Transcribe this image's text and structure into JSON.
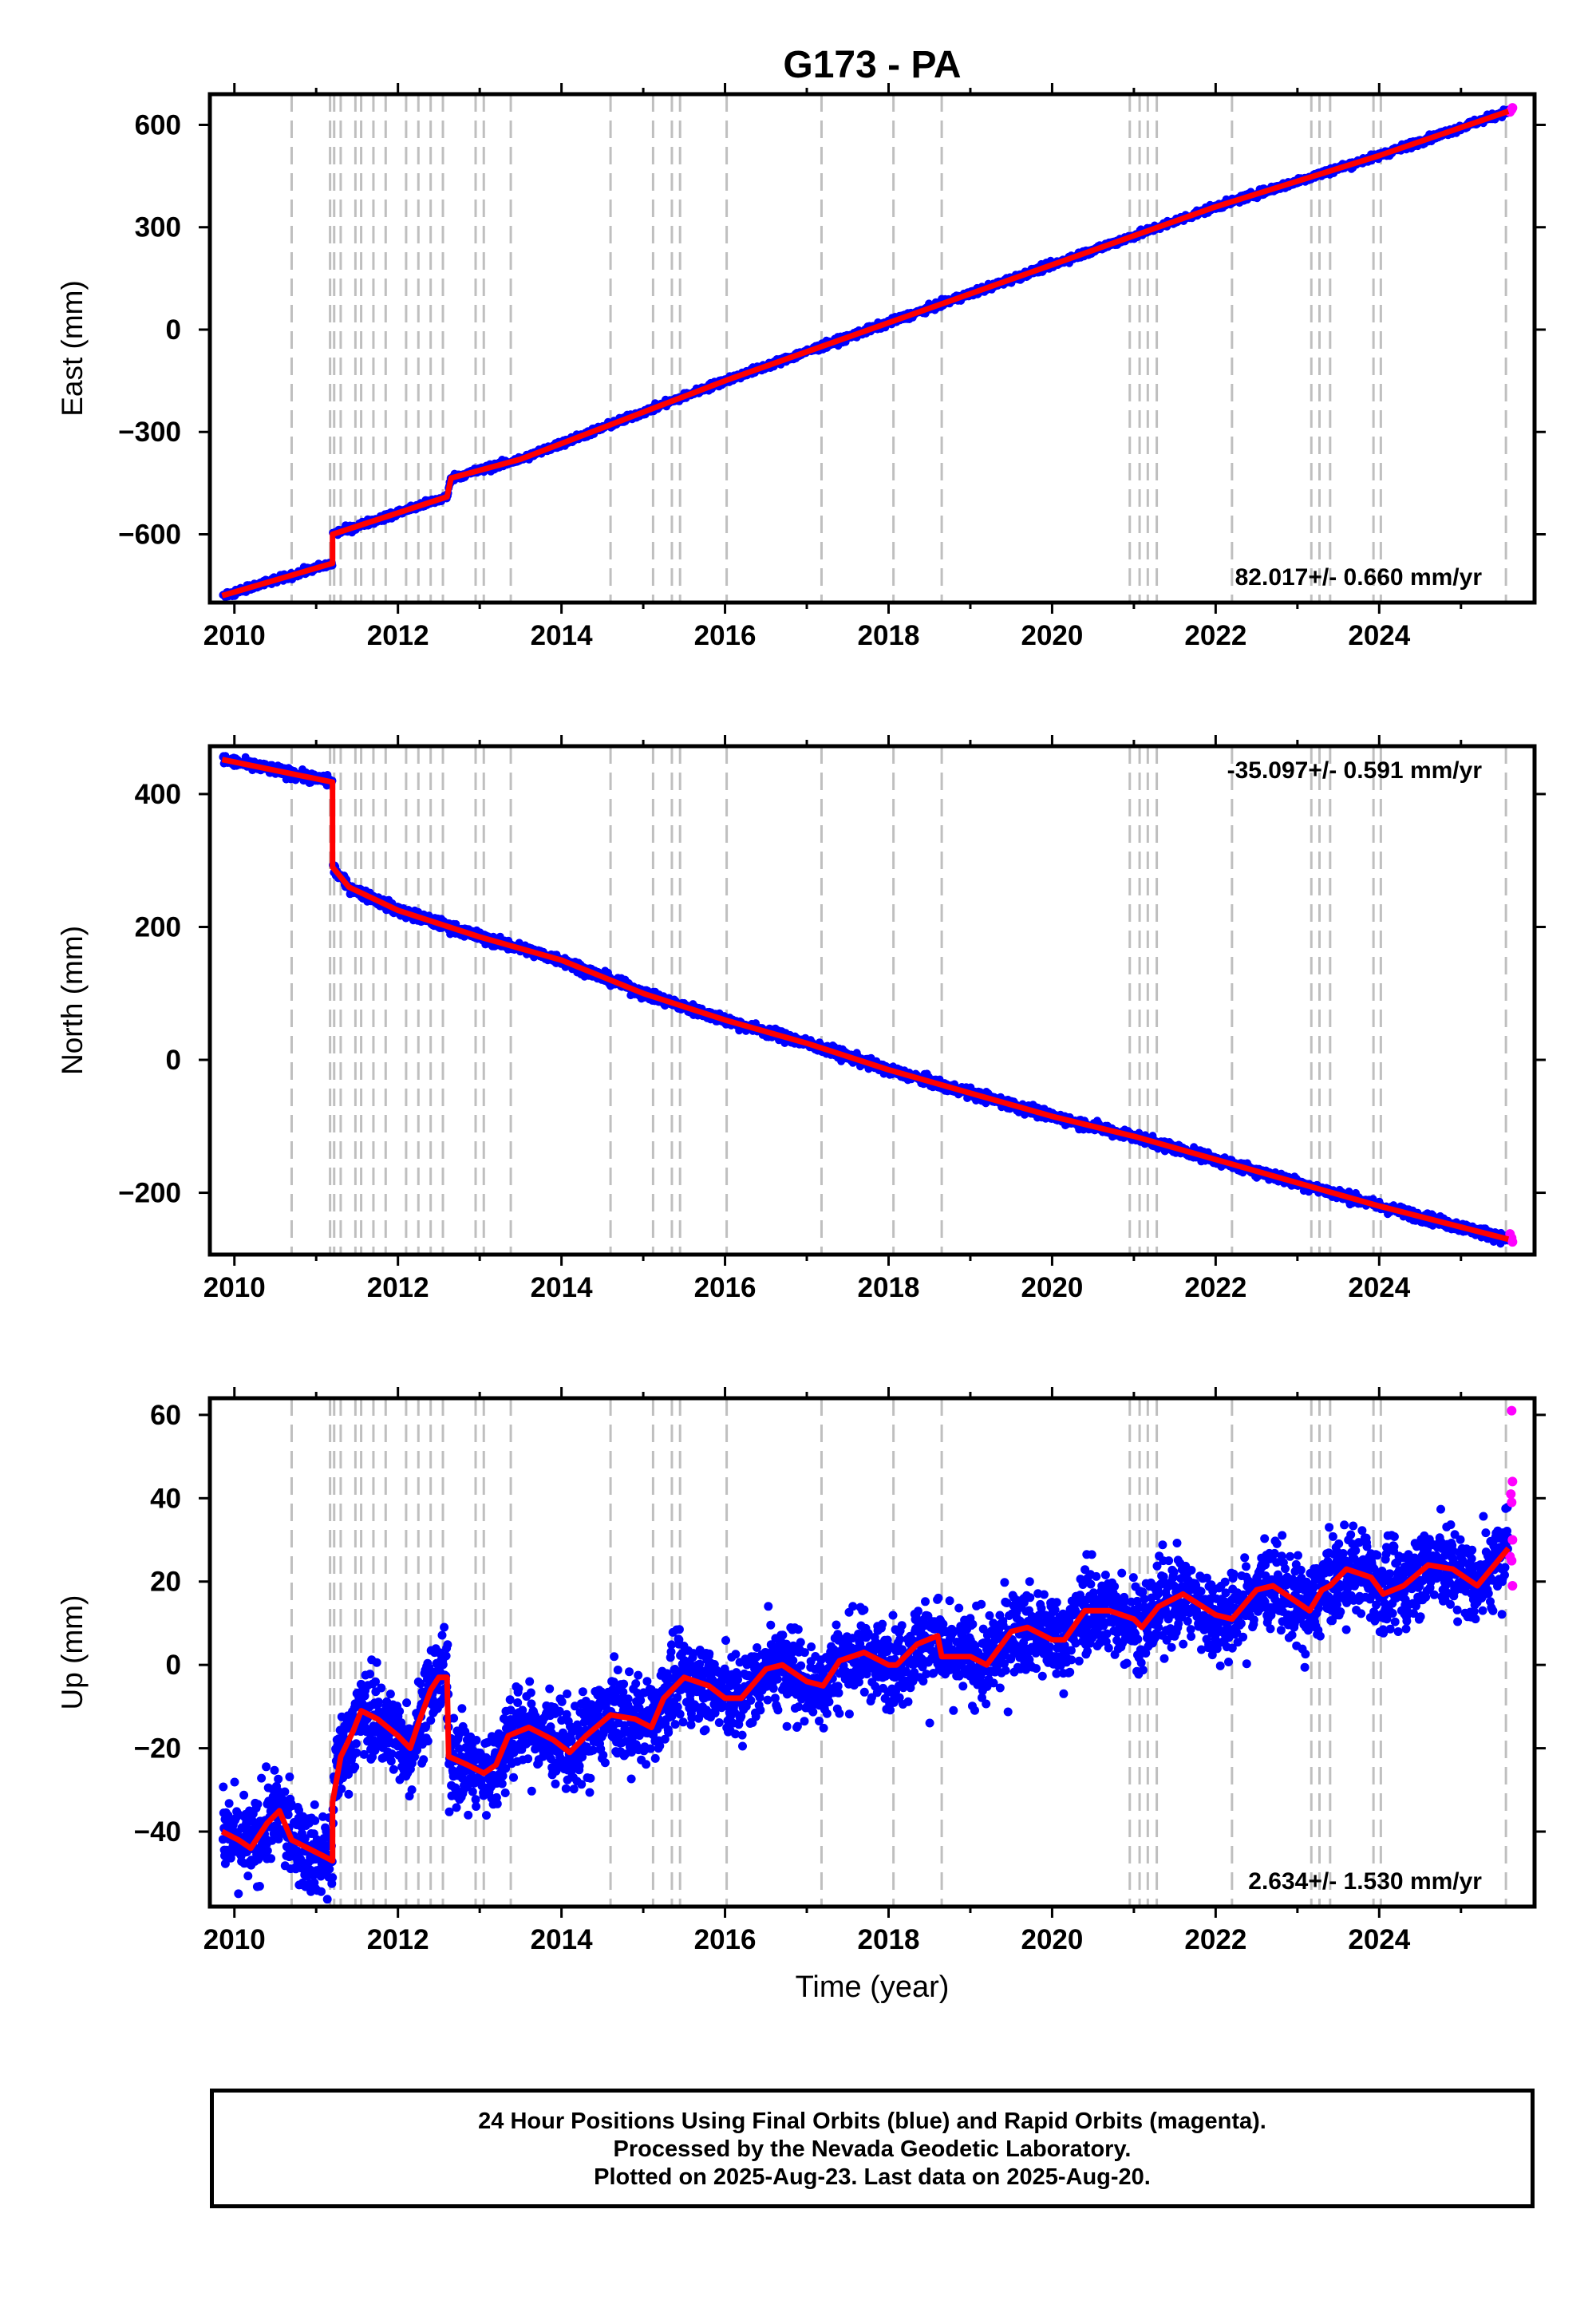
{
  "chart_data": {
    "type": "scatter",
    "title": "G173 - PA",
    "x_label": "Time (year)",
    "x_range": [
      2009.7,
      2025.9
    ],
    "x_ticks": [
      2010,
      2012,
      2014,
      2016,
      2018,
      2020,
      2022,
      2024
    ],
    "x_tick_labels": [
      "2010",
      "2012",
      "2014",
      "2016",
      "2018",
      "2020",
      "2022",
      "2024"
    ],
    "grid": false,
    "event_lines": [
      2010.7,
      2011.17,
      2011.22,
      2011.3,
      2011.48,
      2011.55,
      2011.7,
      2011.85,
      2012.1,
      2012.25,
      2012.4,
      2012.55,
      2012.95,
      2013.05,
      2013.38,
      2014.6,
      2015.12,
      2015.35,
      2015.45,
      2016.02,
      2017.18,
      2018.06,
      2018.65,
      2020.95,
      2021.07,
      2021.17,
      2021.28,
      2022.2,
      2023.17,
      2023.27,
      2023.4,
      2023.93,
      2024.02,
      2025.55
    ],
    "legend": {
      "final_orbits": {
        "label": "Final Orbits",
        "color": "#0000ff"
      },
      "rapid_orbits": {
        "label": "Rapid Orbits",
        "color": "#ff00ff"
      },
      "trend": {
        "label": "trend",
        "color": "#ff0000"
      }
    },
    "panels": [
      {
        "key": "east",
        "ylabel": "East (mm)",
        "ylim": [
          -800,
          690
        ],
        "y_ticks": [
          -600,
          -300,
          0,
          300,
          600
        ],
        "y_tick_labels": [
          "−600",
          "−300",
          "0",
          "300",
          "600"
        ],
        "rate": "82.017+/- 0.660 mm/yr",
        "rate_position": "bottom-right",
        "scatter_spread": 5,
        "trend": [
          [
            2009.85,
            -780
          ],
          [
            2011.2,
            -685
          ],
          [
            2011.2,
            -600
          ],
          [
            2012.6,
            -490
          ],
          [
            2012.65,
            -435
          ],
          [
            2013.5,
            -380
          ],
          [
            2016.0,
            -150
          ],
          [
            2018.0,
            20
          ],
          [
            2020.0,
            190
          ],
          [
            2022.0,
            360
          ],
          [
            2024.0,
            510
          ],
          [
            2025.58,
            640
          ]
        ],
        "rapid": [
          [
            2025.6,
            638
          ],
          [
            2025.62,
            645
          ],
          [
            2025.63,
            650
          ]
        ]
      },
      {
        "key": "north",
        "ylabel": "North (mm)",
        "ylim": [
          -293,
          472
        ],
        "y_ticks": [
          -200,
          0,
          200,
          400
        ],
        "y_tick_labels": [
          "−200",
          "0",
          "200",
          "400"
        ],
        "rate": "-35.097+/- 0.591 mm/yr",
        "rate_position": "top-right",
        "scatter_spread": 4,
        "trend": [
          [
            2009.85,
            452
          ],
          [
            2011.2,
            418
          ],
          [
            2011.2,
            290
          ],
          [
            2011.4,
            260
          ],
          [
            2012.0,
            225
          ],
          [
            2013.0,
            185
          ],
          [
            2014.0,
            150
          ],
          [
            2015.0,
            100
          ],
          [
            2016.0,
            60
          ],
          [
            2017.0,
            25
          ],
          [
            2018.0,
            -15
          ],
          [
            2019.0,
            -50
          ],
          [
            2020.0,
            -85
          ],
          [
            2021.0,
            -115
          ],
          [
            2022.0,
            -150
          ],
          [
            2023.0,
            -185
          ],
          [
            2024.0,
            -220
          ],
          [
            2025.58,
            -270
          ]
        ],
        "rapid": [
          [
            2025.6,
            -262
          ],
          [
            2025.62,
            -268
          ],
          [
            2025.63,
            -274
          ]
        ]
      },
      {
        "key": "up",
        "ylabel": "Up (mm)",
        "ylim": [
          -58,
          64
        ],
        "y_ticks": [
          -40,
          -20,
          0,
          20,
          40,
          60
        ],
        "y_tick_labels": [
          "−40",
          "−20",
          "0",
          "20",
          "40",
          "60"
        ],
        "rate": "2.634+/- 1.530 mm/yr",
        "rate_position": "bottom-right",
        "scatter_spread": 5,
        "trend": [
          [
            2009.85,
            -40
          ],
          [
            2010.05,
            -42
          ],
          [
            2010.2,
            -44
          ],
          [
            2010.4,
            -38
          ],
          [
            2010.55,
            -35
          ],
          [
            2010.7,
            -42
          ],
          [
            2010.9,
            -44
          ],
          [
            2011.1,
            -46
          ],
          [
            2011.2,
            -47
          ],
          [
            2011.2,
            -33
          ],
          [
            2011.3,
            -22
          ],
          [
            2011.45,
            -16
          ],
          [
            2011.55,
            -11
          ],
          [
            2011.75,
            -13
          ],
          [
            2012.0,
            -17
          ],
          [
            2012.15,
            -20
          ],
          [
            2012.25,
            -14
          ],
          [
            2012.4,
            -6
          ],
          [
            2012.5,
            -3
          ],
          [
            2012.6,
            -3
          ],
          [
            2012.62,
            -22
          ],
          [
            2012.85,
            -24
          ],
          [
            2012.95,
            -25
          ],
          [
            2013.05,
            -26
          ],
          [
            2013.2,
            -24
          ],
          [
            2013.35,
            -17
          ],
          [
            2013.6,
            -15
          ],
          [
            2013.9,
            -18
          ],
          [
            2014.1,
            -21
          ],
          [
            2014.3,
            -17
          ],
          [
            2014.6,
            -12
          ],
          [
            2014.9,
            -13
          ],
          [
            2015.1,
            -15
          ],
          [
            2015.25,
            -8
          ],
          [
            2015.5,
            -3
          ],
          [
            2015.8,
            -5
          ],
          [
            2016.0,
            -8
          ],
          [
            2016.2,
            -8
          ],
          [
            2016.5,
            -1
          ],
          [
            2016.7,
            0
          ],
          [
            2017.0,
            -4
          ],
          [
            2017.2,
            -5
          ],
          [
            2017.4,
            1
          ],
          [
            2017.7,
            3
          ],
          [
            2018.0,
            0
          ],
          [
            2018.1,
            0
          ],
          [
            2018.35,
            5
          ],
          [
            2018.6,
            7
          ],
          [
            2018.65,
            2
          ],
          [
            2019.0,
            2
          ],
          [
            2019.2,
            0
          ],
          [
            2019.5,
            8
          ],
          [
            2019.7,
            9
          ],
          [
            2020.0,
            6
          ],
          [
            2020.15,
            6
          ],
          [
            2020.4,
            13
          ],
          [
            2020.7,
            13
          ],
          [
            2021.0,
            11
          ],
          [
            2021.1,
            9
          ],
          [
            2021.3,
            14
          ],
          [
            2021.6,
            17
          ],
          [
            2022.0,
            12
          ],
          [
            2022.2,
            11
          ],
          [
            2022.5,
            18
          ],
          [
            2022.7,
            19
          ],
          [
            2023.0,
            15
          ],
          [
            2023.15,
            13
          ],
          [
            2023.3,
            18
          ],
          [
            2023.4,
            19
          ],
          [
            2023.6,
            23
          ],
          [
            2023.9,
            21
          ],
          [
            2024.05,
            17
          ],
          [
            2024.3,
            19
          ],
          [
            2024.6,
            24
          ],
          [
            2024.9,
            23
          ],
          [
            2025.2,
            19
          ],
          [
            2025.58,
            28
          ]
        ],
        "rapid": [
          [
            2025.62,
            61
          ],
          [
            2025.63,
            44
          ],
          [
            2025.61,
            41
          ],
          [
            2025.62,
            39
          ],
          [
            2025.63,
            30
          ],
          [
            2025.6,
            26
          ],
          [
            2025.62,
            25
          ],
          [
            2025.63,
            19
          ]
        ]
      }
    ]
  },
  "footer": {
    "line1": "24 Hour Positions Using Final Orbits (blue) and Rapid Orbits (magenta).",
    "line2": "Processed by the Nevada Geodetic Laboratory.",
    "line3": "Plotted on 2025-Aug-23. Last data on 2025-Aug-20."
  }
}
